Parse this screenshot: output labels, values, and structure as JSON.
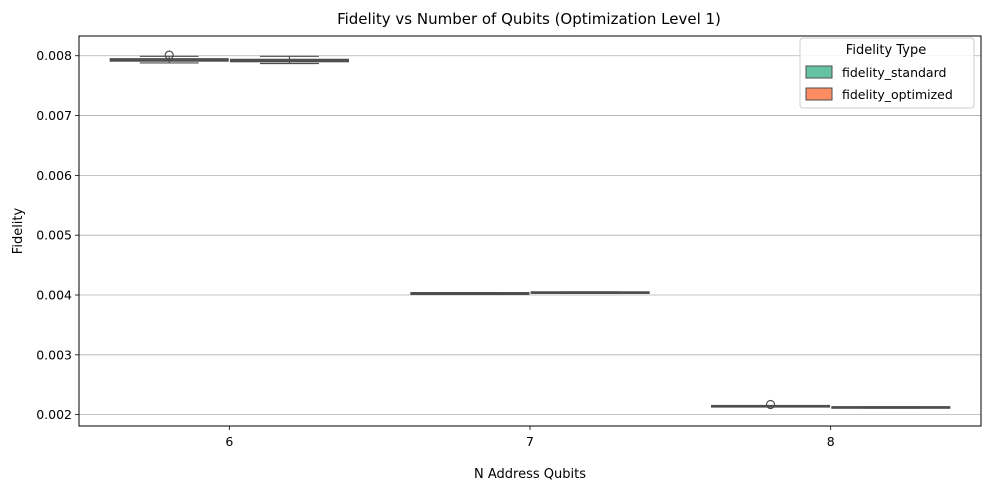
{
  "chart_data": {
    "type": "box",
    "title": "Fidelity vs Number of Qubits (Optimization Level 1)",
    "xlabel": "N Address Qubits",
    "ylabel": "Fidelity",
    "categories": [
      "6",
      "7",
      "8"
    ],
    "ylim": [
      0.00181,
      0.00833
    ],
    "yticks": [
      0.002,
      0.003,
      0.004,
      0.005,
      0.006,
      0.007,
      0.008
    ],
    "ytick_labels": [
      "0.002",
      "0.003",
      "0.004",
      "0.005",
      "0.006",
      "0.007",
      "0.008"
    ],
    "grid": "y",
    "legend": {
      "title": "Fidelity Type",
      "placement": "top-right"
    },
    "series": [
      {
        "name": "fidelity_standard",
        "color": "#66c2a5",
        "boxes": [
          {
            "category": "6",
            "whisker_low": 0.00788,
            "q1": 0.00791,
            "median": 0.00793,
            "q3": 0.00795,
            "whisker_high": 0.00799,
            "outliers": [
              0.00801
            ]
          },
          {
            "category": "7",
            "whisker_low": 0.00401,
            "q1": 0.00401,
            "median": 0.00402,
            "q3": 0.00404,
            "whisker_high": 0.00404,
            "outliers": []
          },
          {
            "category": "8",
            "whisker_low": 0.00213,
            "q1": 0.00213,
            "median": 0.00214,
            "q3": 0.00215,
            "whisker_high": 0.00215,
            "outliers": [
              0.00217
            ]
          }
        ]
      },
      {
        "name": "fidelity_optimized",
        "color": "#fc8d62",
        "boxes": [
          {
            "category": "6",
            "whisker_low": 0.00787,
            "q1": 0.0079,
            "median": 0.00792,
            "q3": 0.00794,
            "whisker_high": 0.00799,
            "outliers": []
          },
          {
            "category": "7",
            "whisker_low": 0.00403,
            "q1": 0.00403,
            "median": 0.00404,
            "q3": 0.00405,
            "whisker_high": 0.00405,
            "outliers": []
          },
          {
            "category": "8",
            "whisker_low": 0.00211,
            "q1": 0.00211,
            "median": 0.00212,
            "q3": 0.00213,
            "whisker_high": 0.00213,
            "outliers": []
          }
        ]
      }
    ]
  }
}
